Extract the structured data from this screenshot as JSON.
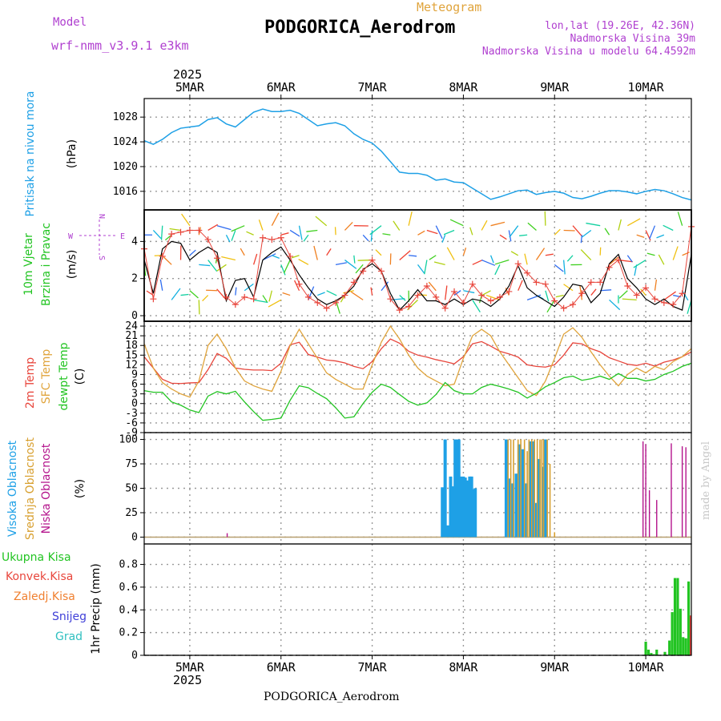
{
  "header": {
    "meteogram_label": "Meteogram",
    "station_title": "PODGORICA_Aerodrom",
    "model_label": "Model",
    "model_name": "wrf-nmm_v3.9.1 e3km",
    "lonlat": "lon,lat (19.26E, 42.36N)",
    "altitude": "Nadmorska Visina 39m",
    "model_altitude": "Nadmorska Visina u modelu 64.4592m",
    "credit": "made by Angel",
    "footer_station": "PODGORICA_Aerodrom"
  },
  "colors": {
    "pressure": "#1ea0e6",
    "temp2m": "#e8463c",
    "sfc_temp": "#e0a43c",
    "dewpt": "#22c422",
    "wind_mean": "#000000",
    "gust": "#e8463c",
    "high_cloud": "#1ea0e6",
    "mid_cloud": "#d8a030",
    "low_cloud": "#b4148c",
    "total_precip": "#22c422",
    "conv_precip": "#e8463c",
    "frozen_precip": "#f08030",
    "snow": "#4040d8",
    "hail": "#30c0c0",
    "compass": "#b040d0"
  },
  "chart_data": [
    {
      "type": "line",
      "panel": "pressure",
      "ylabel_lines": [
        "Pritisak na nivou mora",
        "(hPa)"
      ],
      "x_unit": "days since 5MAR 00UTC",
      "xlim": [
        -0.5,
        5.5
      ],
      "ylim": [
        1013,
        1031
      ],
      "yticks": [
        1016,
        1020,
        1024,
        1028
      ],
      "x": [
        -0.5,
        -0.4,
        -0.3,
        -0.2,
        -0.1,
        0,
        0.1,
        0.2,
        0.3,
        0.4,
        0.5,
        0.6,
        0.7,
        0.8,
        0.9,
        1.0,
        1.1,
        1.2,
        1.3,
        1.4,
        1.5,
        1.6,
        1.7,
        1.8,
        1.9,
        2.0,
        2.1,
        2.2,
        2.3,
        2.4,
        2.5,
        2.6,
        2.7,
        2.8,
        2.9,
        3.0,
        3.1,
        3.2,
        3.3,
        3.4,
        3.5,
        3.6,
        3.7,
        3.8,
        3.9,
        4.0,
        4.1,
        4.2,
        4.3,
        4.4,
        4.5,
        4.6,
        4.7,
        4.8,
        4.9,
        5.0,
        5.1,
        5.2,
        5.3,
        5.4,
        5.5
      ],
      "series": [
        {
          "name": "Pritisak na nivou mora",
          "values": [
            1024.2,
            1023.6,
            1024.4,
            1025.5,
            1026.2,
            1026.4,
            1026.6,
            1027.6,
            1027.9,
            1026.9,
            1026.4,
            1027.6,
            1028.8,
            1029.3,
            1028.9,
            1028.9,
            1029.1,
            1028.6,
            1027.6,
            1026.6,
            1026.9,
            1027.1,
            1026.6,
            1025.3,
            1024.4,
            1023.8,
            1022.5,
            1020.8,
            1019.1,
            1018.9,
            1018.9,
            1018.6,
            1017.8,
            1018.0,
            1017.5,
            1017.4,
            1016.5,
            1015.6,
            1014.7,
            1015.1,
            1015.6,
            1016.1,
            1016.2,
            1015.5,
            1015.8,
            1016.0,
            1015.7,
            1015.0,
            1014.8,
            1015.2,
            1015.7,
            1016.1,
            1016.1,
            1015.9,
            1015.6,
            1016.0,
            1016.3,
            1016.1,
            1015.6,
            1015.0,
            1014.6
          ]
        }
      ]
    },
    {
      "type": "line",
      "panel": "wind",
      "ylabel_lines": [
        "10m Vjetar",
        "Brzina i Pravac",
        "(m/s)"
      ],
      "compass_labels": [
        "N",
        "S",
        "W",
        "E"
      ],
      "xlim": [
        -0.5,
        5.5
      ],
      "ylim": [
        -0.3,
        5.7
      ],
      "yticks": [
        0,
        2,
        4
      ],
      "x": [
        -0.5,
        -0.4,
        -0.3,
        -0.2,
        -0.1,
        0,
        0.1,
        0.2,
        0.3,
        0.4,
        0.5,
        0.6,
        0.7,
        0.8,
        0.9,
        1.0,
        1.1,
        1.2,
        1.3,
        1.4,
        1.5,
        1.6,
        1.7,
        1.8,
        1.9,
        2.0,
        2.1,
        2.2,
        2.3,
        2.4,
        2.5,
        2.6,
        2.7,
        2.8,
        2.9,
        3.0,
        3.1,
        3.2,
        3.3,
        3.4,
        3.5,
        3.6,
        3.7,
        3.8,
        3.9,
        4.0,
        4.1,
        4.2,
        4.3,
        4.4,
        4.5,
        4.6,
        4.7,
        4.8,
        4.9,
        5.0,
        5.1,
        5.2,
        5.3,
        5.4,
        5.5
      ],
      "series": [
        {
          "name": "mean wind",
          "values": [
            3.0,
            1.2,
            3.6,
            4.0,
            3.9,
            3.0,
            3.4,
            3.7,
            3.4,
            0.8,
            1.9,
            2.0,
            1.0,
            3.0,
            3.4,
            3.7,
            3.0,
            2.2,
            1.5,
            0.9,
            0.6,
            0.8,
            1.1,
            1.6,
            2.5,
            2.8,
            2.4,
            1.2,
            0.3,
            0.8,
            1.4,
            0.8,
            0.8,
            0.6,
            0.9,
            0.6,
            0.9,
            0.8,
            0.5,
            0.9,
            1.6,
            2.7,
            1.5,
            1.1,
            0.8,
            0.5,
            1.0,
            1.7,
            1.6,
            0.7,
            1.2,
            2.8,
            3.3,
            2.0,
            1.5,
            0.9,
            0.6,
            0.9,
            0.5,
            0.3,
            3.3
          ]
        },
        {
          "name": "gust",
          "values": [
            3.6,
            0.9,
            3.2,
            4.4,
            4.5,
            4.6,
            4.6,
            4.1,
            3.1,
            1.0,
            0.6,
            1.0,
            0.9,
            4.2,
            4.1,
            4.2,
            3.2,
            1.7,
            1.0,
            0.7,
            0.4,
            0.7,
            1.1,
            1.8,
            2.4,
            3.0,
            2.4,
            0.9,
            0.3,
            0.5,
            1.1,
            1.6,
            1.0,
            0.4,
            1.3,
            0.7,
            1.7,
            1.1,
            0.8,
            1.0,
            1.3,
            2.8,
            2.3,
            1.8,
            1.7,
            0.8,
            0.4,
            0.6,
            1.2,
            1.8,
            1.8,
            2.6,
            3.0,
            1.6,
            1.1,
            1.5,
            0.9,
            0.7,
            0.6,
            1.2,
            4.8
          ]
        }
      ]
    },
    {
      "type": "line",
      "panel": "temperature",
      "ylabel_lines": [
        "2m Temp",
        "SFC Temp",
        "dewpt Temp",
        "(C)"
      ],
      "xlim": [
        -0.5,
        5.5
      ],
      "ylim": [
        -9,
        25.5
      ],
      "yticks": [
        -9,
        -6,
        -3,
        0,
        3,
        6,
        9,
        12,
        15,
        18,
        21,
        24
      ],
      "x": [
        -0.5,
        -0.4,
        -0.3,
        -0.2,
        -0.1,
        0,
        0.1,
        0.2,
        0.3,
        0.4,
        0.5,
        0.6,
        0.7,
        0.8,
        0.9,
        1.0,
        1.1,
        1.2,
        1.3,
        1.4,
        1.5,
        1.6,
        1.7,
        1.8,
        1.9,
        2.0,
        2.1,
        2.2,
        2.3,
        2.4,
        2.5,
        2.6,
        2.7,
        2.8,
        2.9,
        3.0,
        3.1,
        3.2,
        3.3,
        3.4,
        3.5,
        3.6,
        3.7,
        3.8,
        3.9,
        4.0,
        4.1,
        4.2,
        4.3,
        4.4,
        4.5,
        4.6,
        4.7,
        4.8,
        4.9,
        5.0,
        5.1,
        5.2,
        5.3,
        5.4,
        5.5
      ],
      "series": [
        {
          "name": "2m Temp",
          "values": [
            14.5,
            11.0,
            7.5,
            6.3,
            6.2,
            6.4,
            6.5,
            10.5,
            15.5,
            14.0,
            11.0,
            10.6,
            10.4,
            10.4,
            10.2,
            12.5,
            18.2,
            19.0,
            15.2,
            14.4,
            13.5,
            13.2,
            12.6,
            11.5,
            10.8,
            13.0,
            17.0,
            20.0,
            18.7,
            16.2,
            15.0,
            14.4,
            13.6,
            13.0,
            12.3,
            14.5,
            18.5,
            19.2,
            17.8,
            16.2,
            15.4,
            14.4,
            12.0,
            11.5,
            11.3,
            12.0,
            15.0,
            18.8,
            18.5,
            17.0,
            16.0,
            14.2,
            13.2,
            12.2,
            11.8,
            12.5,
            11.6,
            12.8,
            13.5,
            14.5,
            16.0
          ]
        },
        {
          "name": "SFC Temp",
          "values": [
            18.5,
            11.0,
            6.5,
            4.5,
            3.0,
            2.0,
            7.0,
            18.0,
            21.5,
            17.0,
            11.0,
            7.0,
            5.5,
            4.5,
            3.8,
            10.0,
            18.0,
            23.0,
            18.5,
            14.0,
            9.5,
            7.5,
            6.0,
            4.5,
            4.5,
            12.0,
            19.0,
            24.0,
            20.0,
            15.0,
            11.0,
            8.5,
            7.0,
            5.5,
            6.0,
            14.0,
            21.0,
            23.0,
            21.0,
            16.0,
            12.0,
            8.0,
            4.0,
            2.5,
            7.0,
            14.0,
            21.5,
            23.5,
            20.5,
            16.0,
            12.0,
            8.5,
            5.5,
            9.0,
            11.0,
            9.5,
            11.5,
            10.5,
            13.0,
            14.5,
            17.0
          ]
        },
        {
          "name": "dewpt Temp",
          "values": [
            4.0,
            3.5,
            3.5,
            0.5,
            -0.5,
            -2.0,
            -2.8,
            2.3,
            3.7,
            3.0,
            3.8,
            0.5,
            -2.5,
            -5.2,
            -4.9,
            -4.5,
            1.0,
            5.5,
            4.9,
            3.1,
            1.5,
            -1.3,
            -4.5,
            -4.1,
            0.0,
            3.5,
            6.0,
            5.0,
            2.8,
            0.7,
            -0.5,
            0.2,
            2.8,
            6.5,
            4.0,
            3.0,
            3.0,
            5.0,
            6.0,
            5.3,
            4.5,
            3.5,
            1.7,
            3.2,
            5.2,
            6.5,
            8.0,
            8.5,
            7.2,
            7.7,
            8.5,
            7.5,
            9.3,
            7.8,
            7.8,
            7.0,
            7.5,
            9.0,
            10.0,
            11.5,
            12.5
          ]
        }
      ]
    },
    {
      "type": "bar",
      "panel": "cloud",
      "ylabel_lines": [
        "Visoka Oblacnost",
        "Srednja Oblacnost",
        "Niska Oblacnost",
        "(%)"
      ],
      "xlim": [
        -0.5,
        5.5
      ],
      "ylim": [
        -7,
        107
      ],
      "yticks": [
        0,
        25,
        50,
        75,
        100
      ],
      "series": [
        {
          "name": "Visoka Oblacnost",
          "points": [
            [
              2.77,
              51
            ],
            [
              2.8,
              100
            ],
            [
              2.83,
              12
            ],
            [
              2.86,
              62
            ],
            [
              2.88,
              52
            ],
            [
              2.91,
              100
            ],
            [
              2.93,
              100
            ],
            [
              2.95,
              100
            ],
            [
              2.97,
              62
            ],
            [
              3.0,
              62
            ],
            [
              3.02,
              61
            ],
            [
              3.05,
              58
            ],
            [
              3.07,
              62
            ],
            [
              3.09,
              62
            ],
            [
              3.11,
              49
            ],
            [
              3.13,
              50
            ],
            [
              3.47,
              100
            ],
            [
              3.5,
              60
            ],
            [
              3.54,
              55
            ],
            [
              3.58,
              65
            ],
            [
              3.61,
              95
            ],
            [
              3.65,
              90
            ],
            [
              3.69,
              55
            ],
            [
              3.73,
              98
            ],
            [
              3.76,
              98
            ],
            [
              3.8,
              35
            ],
            [
              3.83,
              80
            ],
            [
              3.87,
              72
            ],
            [
              3.9,
              100
            ]
          ]
        },
        {
          "name": "Srednja Oblacnost",
          "points": [
            [
              3.49,
              100
            ],
            [
              3.52,
              100
            ],
            [
              3.55,
              100
            ],
            [
              3.6,
              100
            ],
            [
              3.63,
              100
            ],
            [
              3.67,
              100
            ],
            [
              3.7,
              88
            ],
            [
              3.72,
              100
            ],
            [
              3.75,
              100
            ],
            [
              3.78,
              100
            ],
            [
              3.81,
              100
            ],
            [
              3.84,
              100
            ],
            [
              3.86,
              100
            ],
            [
              3.88,
              100
            ],
            [
              3.92,
              100
            ],
            [
              3.95,
              75
            ],
            [
              4.0,
              5
            ]
          ]
        },
        {
          "name": "Niska Oblacnost",
          "points": [
            [
              0.41,
              4
            ],
            [
              4.97,
              98
            ],
            [
              5.0,
              95
            ],
            [
              5.04,
              48
            ],
            [
              5.12,
              38
            ],
            [
              5.28,
              96
            ],
            [
              5.4,
              93
            ],
            [
              5.44,
              92
            ]
          ]
        }
      ]
    },
    {
      "type": "bar",
      "panel": "precip",
      "ylabel_lines": [
        "Ukupna Kisa",
        "Konvek.Kisa",
        "Zaledj.Kisa",
        "Snijeg",
        "Grad",
        "1hr Precip (mm)"
      ],
      "xlim": [
        -0.5,
        5.5
      ],
      "ylim": [
        0,
        0.98
      ],
      "yticks": [
        0,
        0.2,
        0.4,
        0.6,
        0.8
      ],
      "series": [
        {
          "name": "Ukupna Kisa",
          "points": [
            [
              5.0,
              0.12
            ],
            [
              5.03,
              0.05
            ],
            [
              5.06,
              0.02
            ],
            [
              5.09,
              0.01
            ],
            [
              5.12,
              0.05
            ],
            [
              5.21,
              0.03
            ],
            [
              5.26,
              0.13
            ],
            [
              5.29,
              0.38
            ],
            [
              5.32,
              0.68
            ],
            [
              5.35,
              0.68
            ],
            [
              5.38,
              0.41
            ],
            [
              5.41,
              0.16
            ],
            [
              5.44,
              0.15
            ],
            [
              5.47,
              0.65
            ],
            [
              5.5,
              0.35
            ]
          ]
        },
        {
          "name": "Konvek.Kisa",
          "points": [
            [
              5.5,
              0.35
            ]
          ]
        },
        {
          "name": "Zaledj.Kisa",
          "points": []
        },
        {
          "name": "Snijeg",
          "points": []
        },
        {
          "name": "Grad",
          "points": []
        }
      ]
    }
  ],
  "x_axis": {
    "ticks": [
      {
        "x": 0,
        "label": "5MAR"
      },
      {
        "x": 1,
        "label": "6MAR"
      },
      {
        "x": 2,
        "label": "7MAR"
      },
      {
        "x": 3,
        "label": "8MAR"
      },
      {
        "x": 4,
        "label": "9MAR"
      },
      {
        "x": 5,
        "label": "10MAR"
      }
    ],
    "year_label": "2025"
  }
}
